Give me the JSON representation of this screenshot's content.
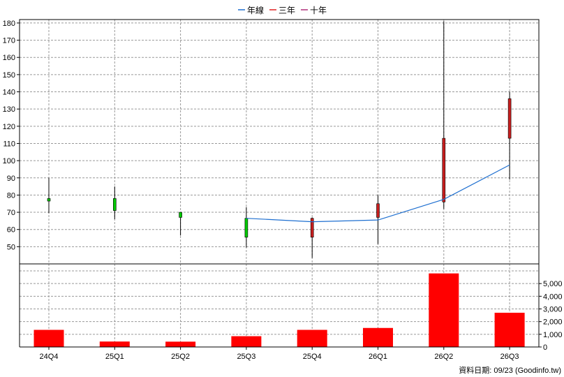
{
  "legend": [
    {
      "label": "年線",
      "color": "#1e6fd0"
    },
    {
      "label": "三年",
      "color": "#e02020"
    },
    {
      "label": "十年",
      "color": "#b0307a"
    }
  ],
  "source_note": "資料日期: 09/23  (Goodinfo.tw)",
  "chart_data": [
    {
      "type": "candlestick",
      "categories": [
        "24Q4",
        "25Q1",
        "25Q2",
        "25Q3",
        "25Q4",
        "26Q1",
        "26Q2",
        "26Q3"
      ],
      "ylim": [
        40,
        182
      ],
      "yticks": [
        50,
        60,
        70,
        80,
        90,
        100,
        110,
        120,
        130,
        140,
        150,
        160,
        170,
        180
      ],
      "grid": true,
      "candles": [
        {
          "open": 78,
          "close": 76.5,
          "high": 90,
          "low": 69.5,
          "color": "#00c800"
        },
        {
          "open": 78,
          "close": 71,
          "high": 85,
          "low": 66,
          "color": "#00c800"
        },
        {
          "open": 70,
          "close": 67,
          "high": 70,
          "low": 56.5,
          "color": "#00c800"
        },
        {
          "open": 66.5,
          "close": 55.5,
          "high": 73,
          "low": 49.5,
          "color": "#00c800"
        },
        {
          "open": 55.5,
          "close": 66.5,
          "high": 67,
          "low": 43.5,
          "color": "#c81e1e"
        },
        {
          "open": 67,
          "close": 75,
          "high": 80,
          "low": 51.5,
          "color": "#c81e1e"
        },
        {
          "open": 76,
          "close": 113,
          "high": 181,
          "low": 72,
          "color": "#c81e1e"
        },
        {
          "open": 113,
          "close": 136,
          "high": 140,
          "low": 89,
          "color": "#c81e1e"
        }
      ],
      "series": [
        {
          "name": "年線",
          "color": "#1e6fd0",
          "values": [
            null,
            null,
            null,
            66.5,
            64.5,
            65.5,
            77.5,
            97.5
          ]
        }
      ]
    },
    {
      "type": "bar",
      "categories": [
        "24Q4",
        "25Q1",
        "25Q2",
        "25Q3",
        "25Q4",
        "26Q1",
        "26Q2",
        "26Q3"
      ],
      "values": [
        1350,
        430,
        420,
        850,
        1350,
        1500,
        5800,
        2700
      ],
      "ylim": [
        0,
        6000
      ],
      "yticks": [
        0,
        1000,
        2000,
        3000,
        4000,
        5000
      ],
      "ytick_labels": [
        "0",
        "1,000",
        "2,000",
        "3,000",
        "4,000",
        "5,000"
      ],
      "bar_color": "#ff0000",
      "grid": true
    }
  ]
}
